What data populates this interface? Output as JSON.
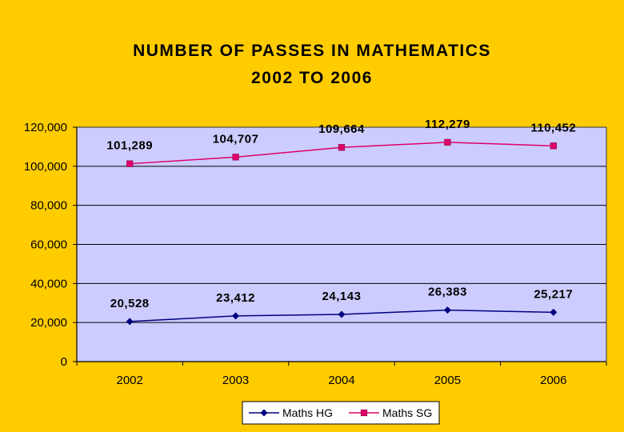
{
  "chart_data": {
    "type": "line",
    "title_lines": [
      "NUMBER OF PASSES IN MATHEMATICS",
      "2002 TO 2006"
    ],
    "categories": [
      "2002",
      "2003",
      "2004",
      "2005",
      "2006"
    ],
    "series": [
      {
        "name": "Maths HG",
        "values": [
          20528,
          23412,
          24143,
          26383,
          25217
        ],
        "labels": [
          "20,528",
          "23,412",
          "24,143",
          "26,383",
          "25,217"
        ],
        "color": "#000080",
        "marker": "diamond"
      },
      {
        "name": "Maths SG",
        "values": [
          101289,
          104707,
          109664,
          112279,
          110452
        ],
        "labels": [
          "101,289",
          "104,707",
          "109,664",
          "112,279",
          "110,452"
        ],
        "color": "#E0006A",
        "marker": "square"
      }
    ],
    "ylim": [
      0,
      120000
    ],
    "yticks": [
      0,
      20000,
      40000,
      60000,
      80000,
      100000,
      120000
    ],
    "ytick_labels": [
      "0",
      "20,000",
      "40,000",
      "60,000",
      "80,000",
      "100,000",
      "120,000"
    ],
    "grid": true,
    "plot_background": "#CCCCFF",
    "page_background": "#FFCC00",
    "legend_position": "bottom-center"
  }
}
